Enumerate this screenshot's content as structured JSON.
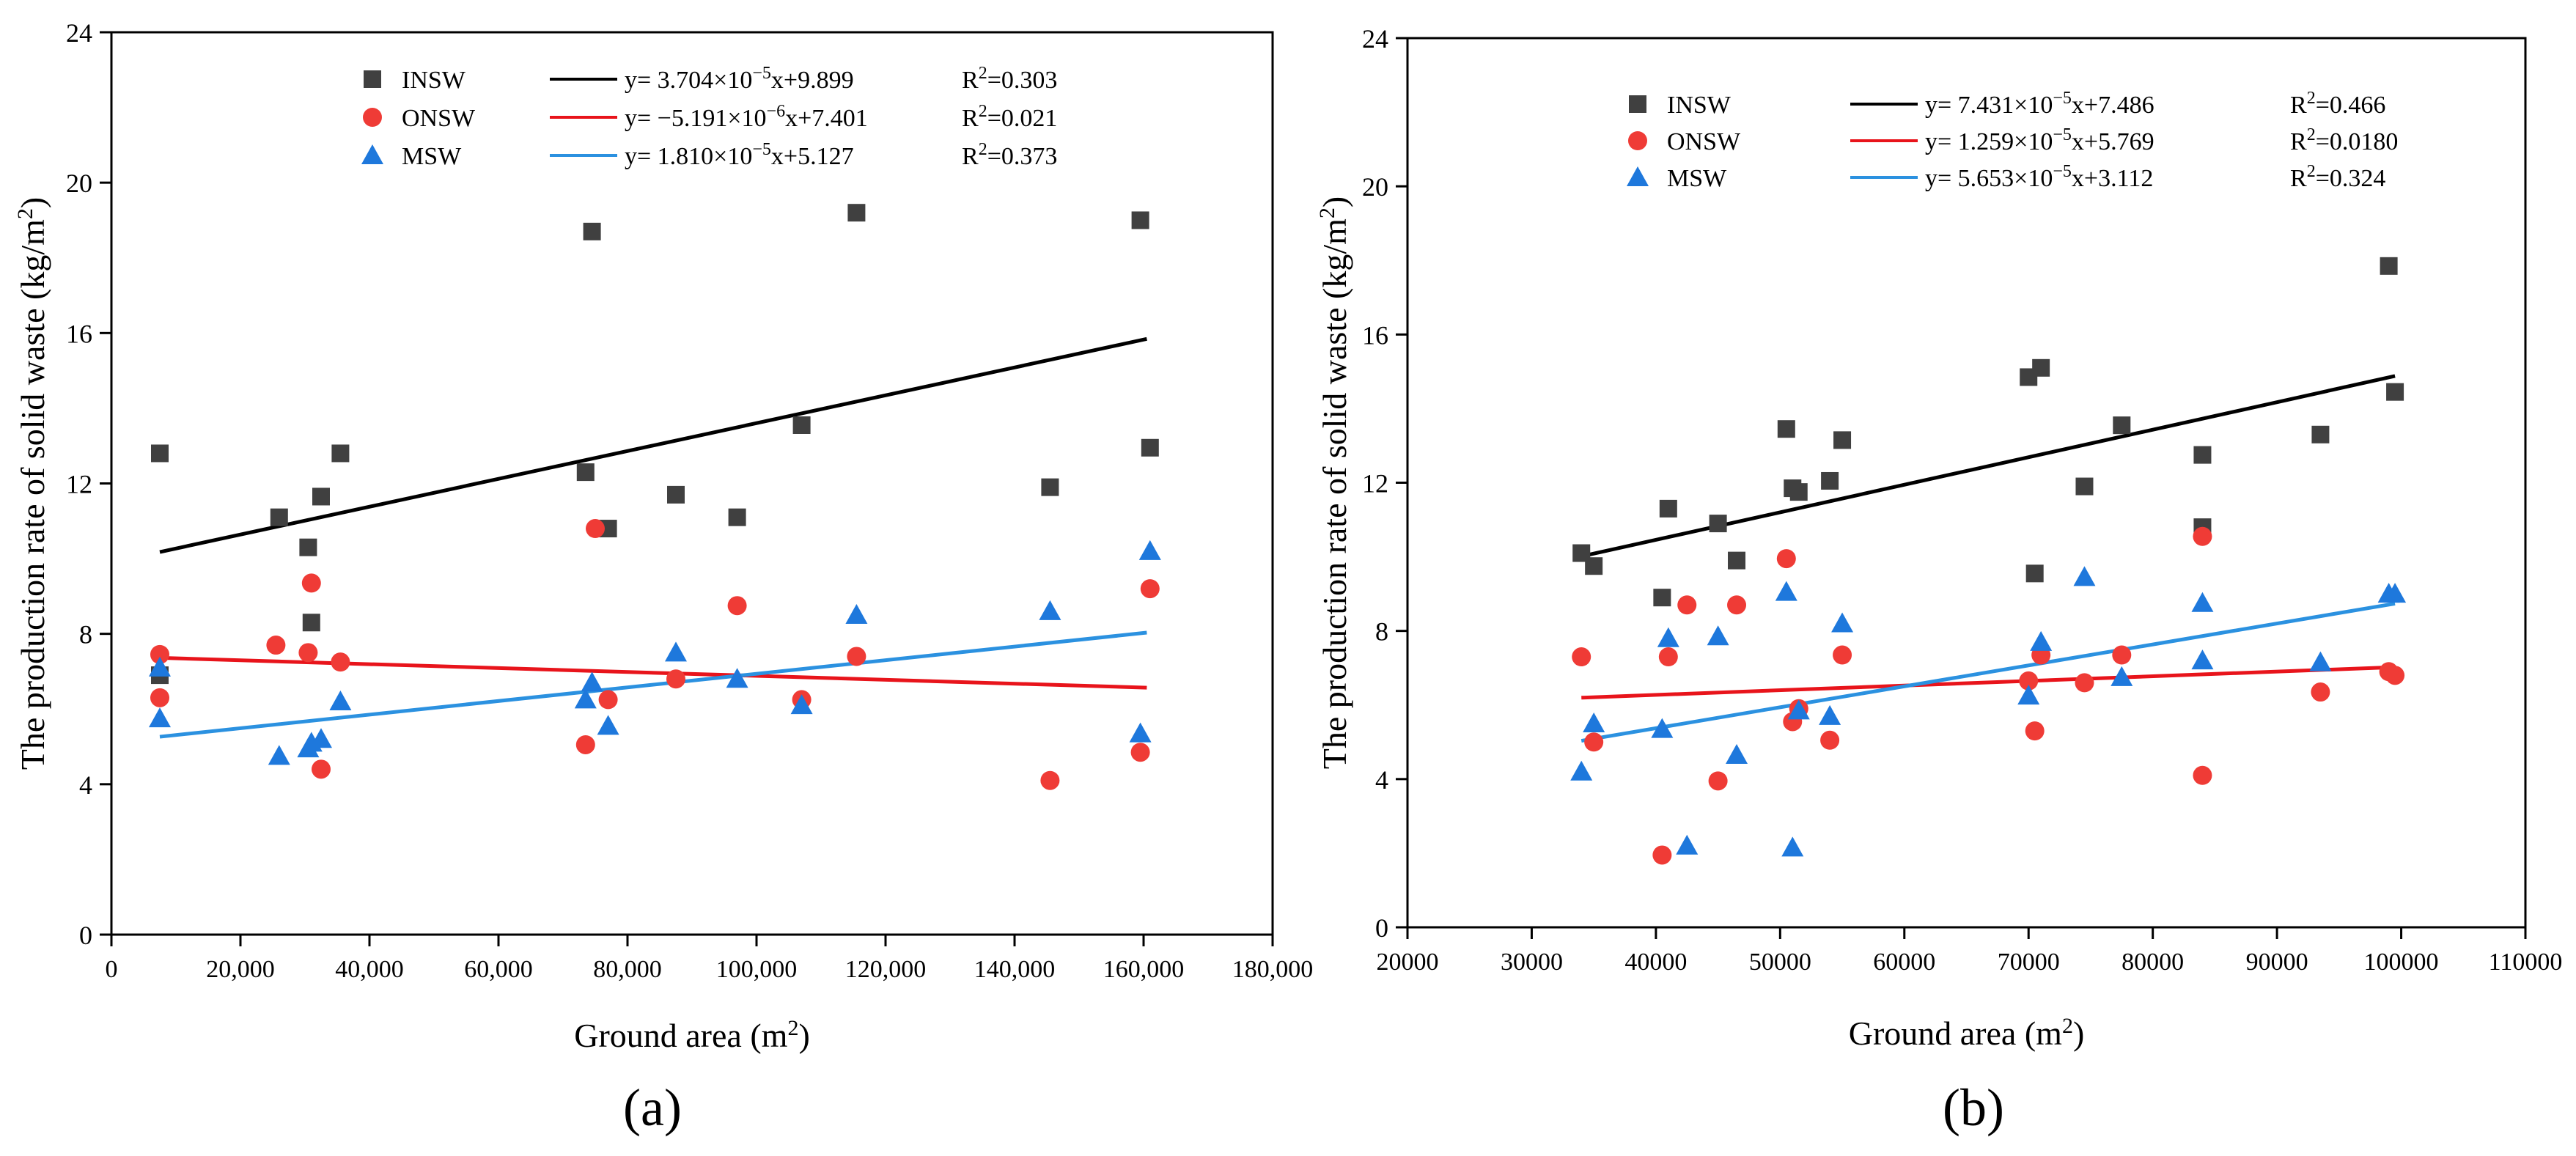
{
  "colors": {
    "INSW": "#404040",
    "ONSW": "#ef3b36",
    "MSW": "#1e78dc",
    "line_INSW": "#000000",
    "line_ONSW": "#e8141b",
    "line_MSW": "#2b91e0"
  },
  "legend_labels": {
    "INSW": "INSW",
    "ONSW": "ONSW",
    "MSW": "MSW"
  },
  "chart_data": [
    {
      "panel_label": "(a)",
      "type": "scatter",
      "xlabel": "Ground area (m²)",
      "ylabel": "The production rate of solid waste (kg/m²)",
      "xlim": [
        0,
        180000
      ],
      "ylim": [
        0,
        24
      ],
      "xticks": [
        0,
        20000,
        40000,
        60000,
        80000,
        100000,
        120000,
        140000,
        160000,
        180000
      ],
      "xtick_labels": [
        "0",
        "20,000",
        "40,000",
        "60,000",
        "80,000",
        "100,000",
        "120,000",
        "140,000",
        "160,000",
        "180,000"
      ],
      "yticks": [
        0,
        4,
        8,
        12,
        16,
        20,
        24
      ],
      "ytick_labels": [
        "0",
        "4",
        "8",
        "12",
        "16",
        "20",
        "24"
      ],
      "series": [
        {
          "name": "INSW",
          "marker": "square",
          "points": [
            [
              7500,
              12.8
            ],
            [
              7500,
              6.9
            ],
            [
              26000,
              11.1
            ],
            [
              30500,
              10.3
            ],
            [
              31000,
              8.3
            ],
            [
              32500,
              11.65
            ],
            [
              35500,
              12.8
            ],
            [
              73500,
              12.3
            ],
            [
              74500,
              18.7
            ],
            [
              77000,
              10.8
            ],
            [
              87500,
              11.7
            ],
            [
              97000,
              11.1
            ],
            [
              107000,
              13.55
            ],
            [
              115500,
              19.2
            ],
            [
              145500,
              11.9
            ],
            [
              159500,
              19.0
            ],
            [
              161000,
              12.95
            ]
          ]
        },
        {
          "name": "ONSW",
          "marker": "circle",
          "points": [
            [
              7500,
              7.45
            ],
            [
              7500,
              6.3
            ],
            [
              25500,
              7.7
            ],
            [
              30500,
              7.5
            ],
            [
              31000,
              9.35
            ],
            [
              32500,
              4.4
            ],
            [
              35500,
              7.25
            ],
            [
              73500,
              5.05
            ],
            [
              75000,
              10.8
            ],
            [
              77000,
              6.25
            ],
            [
              87500,
              6.8
            ],
            [
              97000,
              8.75
            ],
            [
              107000,
              6.25
            ],
            [
              115500,
              7.4
            ],
            [
              145500,
              4.1
            ],
            [
              159500,
              4.85
            ],
            [
              161000,
              9.2
            ]
          ]
        },
        {
          "name": "MSW",
          "marker": "triangle",
          "points": [
            [
              7500,
              7.1
            ],
            [
              7500,
              5.75
            ],
            [
              26000,
              4.75
            ],
            [
              30500,
              4.95
            ],
            [
              31000,
              5.1
            ],
            [
              32500,
              5.2
            ],
            [
              35500,
              6.2
            ],
            [
              73500,
              6.25
            ],
            [
              74500,
              6.7
            ],
            [
              77000,
              5.55
            ],
            [
              87500,
              7.5
            ],
            [
              97000,
              6.8
            ],
            [
              107000,
              6.1
            ],
            [
              115500,
              8.5
            ],
            [
              145500,
              8.6
            ],
            [
              159500,
              5.35
            ],
            [
              161000,
              10.2
            ]
          ]
        }
      ],
      "fits": [
        {
          "name": "INSW",
          "equation": "y= 3.704×10⁻⁵x+9.899",
          "r2": "R²=0.303",
          "slope": 3.704e-05,
          "intercept": 9.899,
          "x_range": [
            7500,
            160500
          ]
        },
        {
          "name": "ONSW",
          "equation": "y= −5.191×10⁻⁶x+7.401",
          "r2": "R²=0.021",
          "slope": -5.191e-06,
          "intercept": 7.401,
          "x_range": [
            7500,
            160500
          ]
        },
        {
          "name": "MSW",
          "equation": "y= 1.810×10⁻⁵x+5.127",
          "r2": "R²=0.373",
          "slope": 1.81e-05,
          "intercept": 5.127,
          "x_range": [
            7500,
            160500
          ]
        }
      ]
    },
    {
      "panel_label": "(b)",
      "type": "scatter",
      "xlabel": "Ground area (m²)",
      "ylabel": "The production rate of solid waste (kg/m²)",
      "xlim": [
        20000,
        110000
      ],
      "ylim": [
        0,
        24
      ],
      "xticks": [
        20000,
        30000,
        40000,
        50000,
        60000,
        70000,
        80000,
        90000,
        100000,
        110000
      ],
      "xtick_labels": [
        "20000",
        "30000",
        "40000",
        "50000",
        "60000",
        "70000",
        "80000",
        "90000",
        "100000",
        "110000"
      ],
      "yticks": [
        0,
        4,
        8,
        12,
        16,
        20,
        24
      ],
      "ytick_labels": [
        "0",
        "4",
        "8",
        "12",
        "16",
        "20",
        "24"
      ],
      "series": [
        {
          "name": "INSW",
          "marker": "square",
          "points": [
            [
              34000,
              10.1
            ],
            [
              35000,
              9.75
            ],
            [
              40500,
              8.9
            ],
            [
              41000,
              11.3
            ],
            [
              45000,
              10.9
            ],
            [
              46500,
              9.9
            ],
            [
              50500,
              13.45
            ],
            [
              51000,
              11.85
            ],
            [
              51500,
              11.75
            ],
            [
              54000,
              12.05
            ],
            [
              55000,
              13.15
            ],
            [
              70000,
              14.85
            ],
            [
              70500,
              9.55
            ],
            [
              71000,
              15.1
            ],
            [
              74500,
              11.9
            ],
            [
              77500,
              13.55
            ],
            [
              84000,
              12.75
            ],
            [
              84000,
              10.8
            ],
            [
              93500,
              13.3
            ],
            [
              99000,
              17.85
            ],
            [
              99500,
              14.45
            ]
          ]
        },
        {
          "name": "ONSW",
          "marker": "circle",
          "points": [
            [
              34000,
              7.3
            ],
            [
              35000,
              5.0
            ],
            [
              40500,
              1.95
            ],
            [
              41000,
              7.3
            ],
            [
              42500,
              8.7
            ],
            [
              45000,
              3.95
            ],
            [
              46500,
              8.7
            ],
            [
              50500,
              9.95
            ],
            [
              51000,
              5.55
            ],
            [
              51500,
              5.9
            ],
            [
              54000,
              5.05
            ],
            [
              55000,
              7.35
            ],
            [
              70000,
              6.65
            ],
            [
              70500,
              5.3
            ],
            [
              71000,
              7.35
            ],
            [
              74500,
              6.6
            ],
            [
              77500,
              7.35
            ],
            [
              84000,
              10.55
            ],
            [
              84000,
              4.1
            ],
            [
              93500,
              6.35
            ],
            [
              99000,
              6.9
            ],
            [
              99500,
              6.8
            ]
          ]
        },
        {
          "name": "MSW",
          "marker": "triangle",
          "points": [
            [
              34000,
              4.2
            ],
            [
              35000,
              5.5
            ],
            [
              40500,
              5.35
            ],
            [
              41000,
              7.8
            ],
            [
              42500,
              2.2
            ],
            [
              45000,
              7.85
            ],
            [
              46500,
              4.65
            ],
            [
              50500,
              9.05
            ],
            [
              51000,
              2.15
            ],
            [
              51500,
              5.85
            ],
            [
              54000,
              5.7
            ],
            [
              55000,
              8.2
            ],
            [
              70000,
              6.25
            ],
            [
              71000,
              7.7
            ],
            [
              74500,
              9.45
            ],
            [
              77500,
              6.75
            ],
            [
              84000,
              8.75
            ],
            [
              84000,
              7.2
            ],
            [
              93500,
              7.15
            ],
            [
              99000,
              9.0
            ],
            [
              99500,
              9.0
            ]
          ]
        }
      ],
      "fits": [
        {
          "name": "INSW",
          "equation": "y= 7.431×10⁻⁵x+7.486",
          "r2": "R²=0.466",
          "slope": 7.431e-05,
          "intercept": 7.486,
          "x_range": [
            34000,
            99500
          ]
        },
        {
          "name": "ONSW",
          "equation": "y= 1.259×10⁻⁵x+5.769",
          "r2": "R²=0.0180",
          "slope": 1.259e-05,
          "intercept": 5.769,
          "x_range": [
            34000,
            99500
          ]
        },
        {
          "name": "MSW",
          "equation": "y= 5.653×10⁻⁵x+3.112",
          "r2": "R²=0.324",
          "slope": 5.653e-05,
          "intercept": 3.112,
          "x_range": [
            34000,
            99500
          ]
        }
      ]
    }
  ]
}
